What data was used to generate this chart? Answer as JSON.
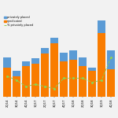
{
  "quarters": [
    "2Q14",
    "3Q14",
    "4Q14",
    "1Q17",
    "2Q17",
    "3Q17",
    "4Q17",
    "1Q18",
    "2Q18",
    "3Q18",
    "1Q19",
    "4Q18"
  ],
  "orange_vals": [
    28,
    20,
    30,
    32,
    42,
    52,
    34,
    36,
    30,
    25,
    62,
    27
  ],
  "blue_vals": [
    10,
    5,
    4,
    5,
    5,
    5,
    9,
    9,
    8,
    3,
    12,
    18
  ],
  "green_line": [
    20,
    16,
    10,
    12,
    10,
    8,
    18,
    18,
    18,
    14,
    16,
    38
  ],
  "bar_orange": "#f97c00",
  "bar_blue": "#5b9bd5",
  "line_color": "#92d050",
  "bg_color": "#f2f2f2",
  "legend_labels": [
    "privately placed",
    "syndicated",
    "% privately placed"
  ],
  "figsize": [
    1.5,
    1.5
  ],
  "dpi": 100,
  "ylim": [
    0,
    80
  ],
  "y2lim": [
    0,
    80
  ]
}
